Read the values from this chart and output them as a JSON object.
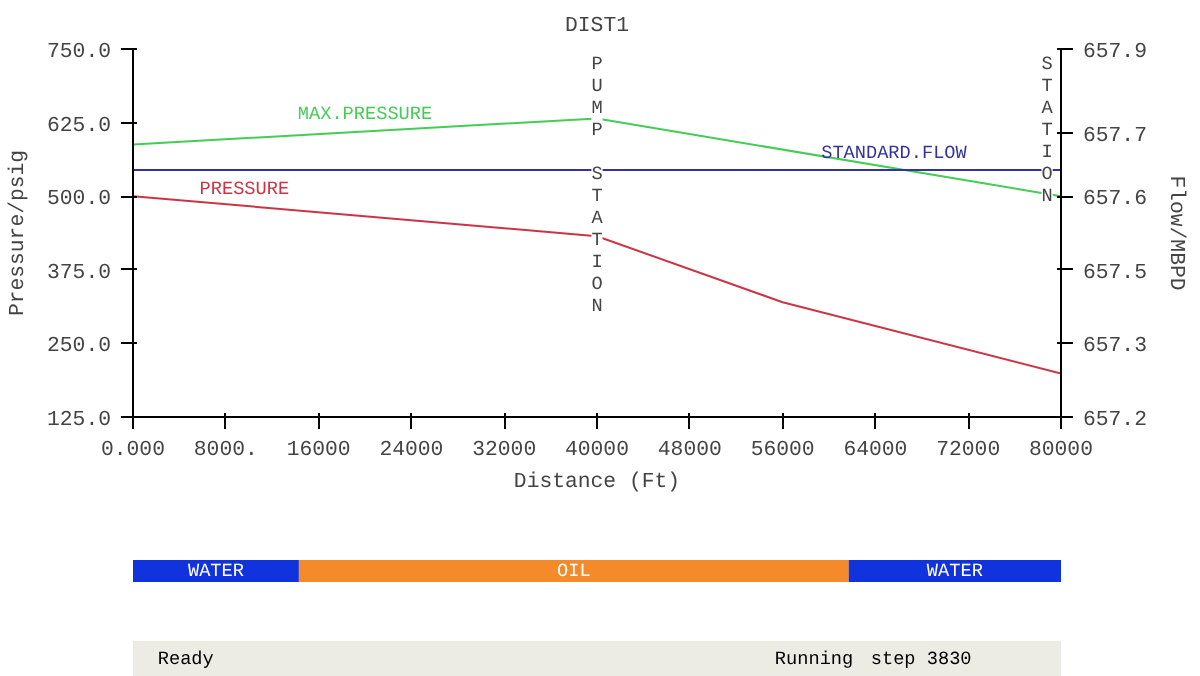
{
  "chart_data": [
    {
      "type": "line",
      "title": "DIST1",
      "xlabel": "Distance (Ft)",
      "ylabel": "Pressure/psig",
      "y2label": "Flow/MBPD",
      "xlim": [
        0,
        80000
      ],
      "xticks": [
        {
          "value": 0,
          "label": "0.000"
        },
        {
          "value": 8000,
          "label": "8000."
        },
        16000,
        24000,
        32000,
        40000,
        48000,
        56000,
        64000,
        72000,
        80000
      ],
      "ylim": [
        125,
        750
      ],
      "yticks": [
        {
          "value": 125,
          "label": "125.0"
        },
        {
          "value": 250,
          "label": "250.0"
        },
        {
          "value": 375,
          "label": "375.0"
        },
        {
          "value": 500,
          "label": "500.0"
        },
        {
          "value": 625,
          "label": "625.0"
        },
        {
          "value": 750,
          "label": "750.0"
        }
      ],
      "y2lim": [
        657.2,
        657.9
      ],
      "y2ticks": [
        {
          "value": 657.2,
          "label": "657.2"
        },
        {
          "value": 657.34,
          "label": "657.3"
        },
        {
          "value": 657.48,
          "label": "657.5"
        },
        {
          "value": 657.62,
          "label": "657.6"
        },
        {
          "value": 657.74,
          "label": "657.7"
        },
        {
          "value": 657.9,
          "label": "657.9"
        }
      ],
      "series": [
        {
          "name": "MAX.PRESSURE",
          "color": "#44cc55",
          "x": [
            0,
            40000,
            80000
          ],
          "values": [
            588,
            632,
            500
          ]
        },
        {
          "name": "PRESSURE",
          "color": "#cc3344",
          "x": [
            0,
            40000,
            56000,
            80000
          ],
          "values": [
            500,
            432,
            320,
            199
          ]
        },
        {
          "name": "STANDARD.FLOW",
          "color": "#333399",
          "axis": "y2",
          "x": [
            0,
            80000
          ],
          "values": [
            657.67,
            657.67
          ]
        }
      ],
      "annotations": [
        "PUMP STATION",
        "STATION"
      ],
      "grid": false
    },
    {
      "type": "bar",
      "orientation": "horizontal",
      "stacked": true,
      "categories": [
        null
      ],
      "xlim": [
        0,
        80000
      ],
      "tick_labels": false,
      "series": [
        {
          "name": "WATER",
          "color": "#1133dd",
          "values": [
            14300
          ]
        },
        {
          "name": "OIL",
          "color": "#f58a2a",
          "values": [
            47400
          ]
        },
        {
          "name": "WATER",
          "color": "#1133dd",
          "values": [
            18300
          ]
        }
      ],
      "annotations": [
        "Ready",
        "Running",
        "step 3830"
      ]
    }
  ]
}
